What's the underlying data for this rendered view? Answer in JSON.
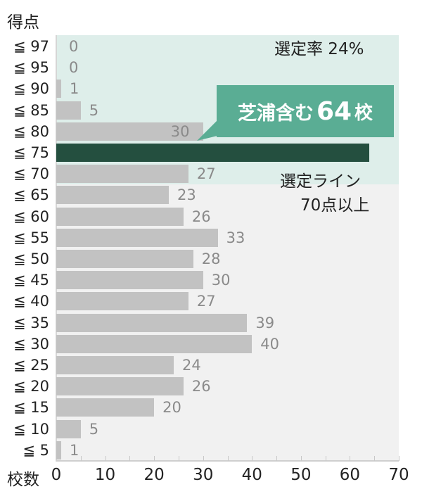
{
  "chart_data": {
    "type": "bar",
    "orientation": "horizontal",
    "title": "",
    "ylabel": "得点",
    "xlabel": "校数",
    "xlim": [
      0,
      70
    ],
    "xticks": [
      0,
      10,
      20,
      30,
      40,
      50,
      60,
      70
    ],
    "categories": [
      "≦ 97",
      "≦ 95",
      "≦ 90",
      "≦ 85",
      "≦ 80",
      "≦ 75",
      "≦ 70",
      "≦ 65",
      "≦ 60",
      "≦ 55",
      "≦ 50",
      "≦ 45",
      "≦ 40",
      "≦ 35",
      "≦ 30",
      "≦ 25",
      "≦ 20",
      "≦ 15",
      "≦ 10",
      "≦ 5"
    ],
    "values": [
      0,
      0,
      1,
      5,
      30,
      64,
      27,
      23,
      26,
      33,
      28,
      30,
      27,
      39,
      40,
      24,
      26,
      20,
      5,
      1
    ],
    "highlight_index": 5,
    "annotations": {
      "selection_rate": "選定率 24%",
      "callout": {
        "prefix": "芝浦含む",
        "number": "64",
        "unit": "校"
      },
      "selection_line_1": "選定ライン",
      "selection_line_2": "70点以上"
    },
    "colors": {
      "bar": "#c2c2c2",
      "highlight_bar": "#244f3f",
      "selection_zone": "#deeeea",
      "plot_bg": "#f1f1f1",
      "callout_bg": "#5aad94"
    },
    "grid": false,
    "legend": "none"
  }
}
